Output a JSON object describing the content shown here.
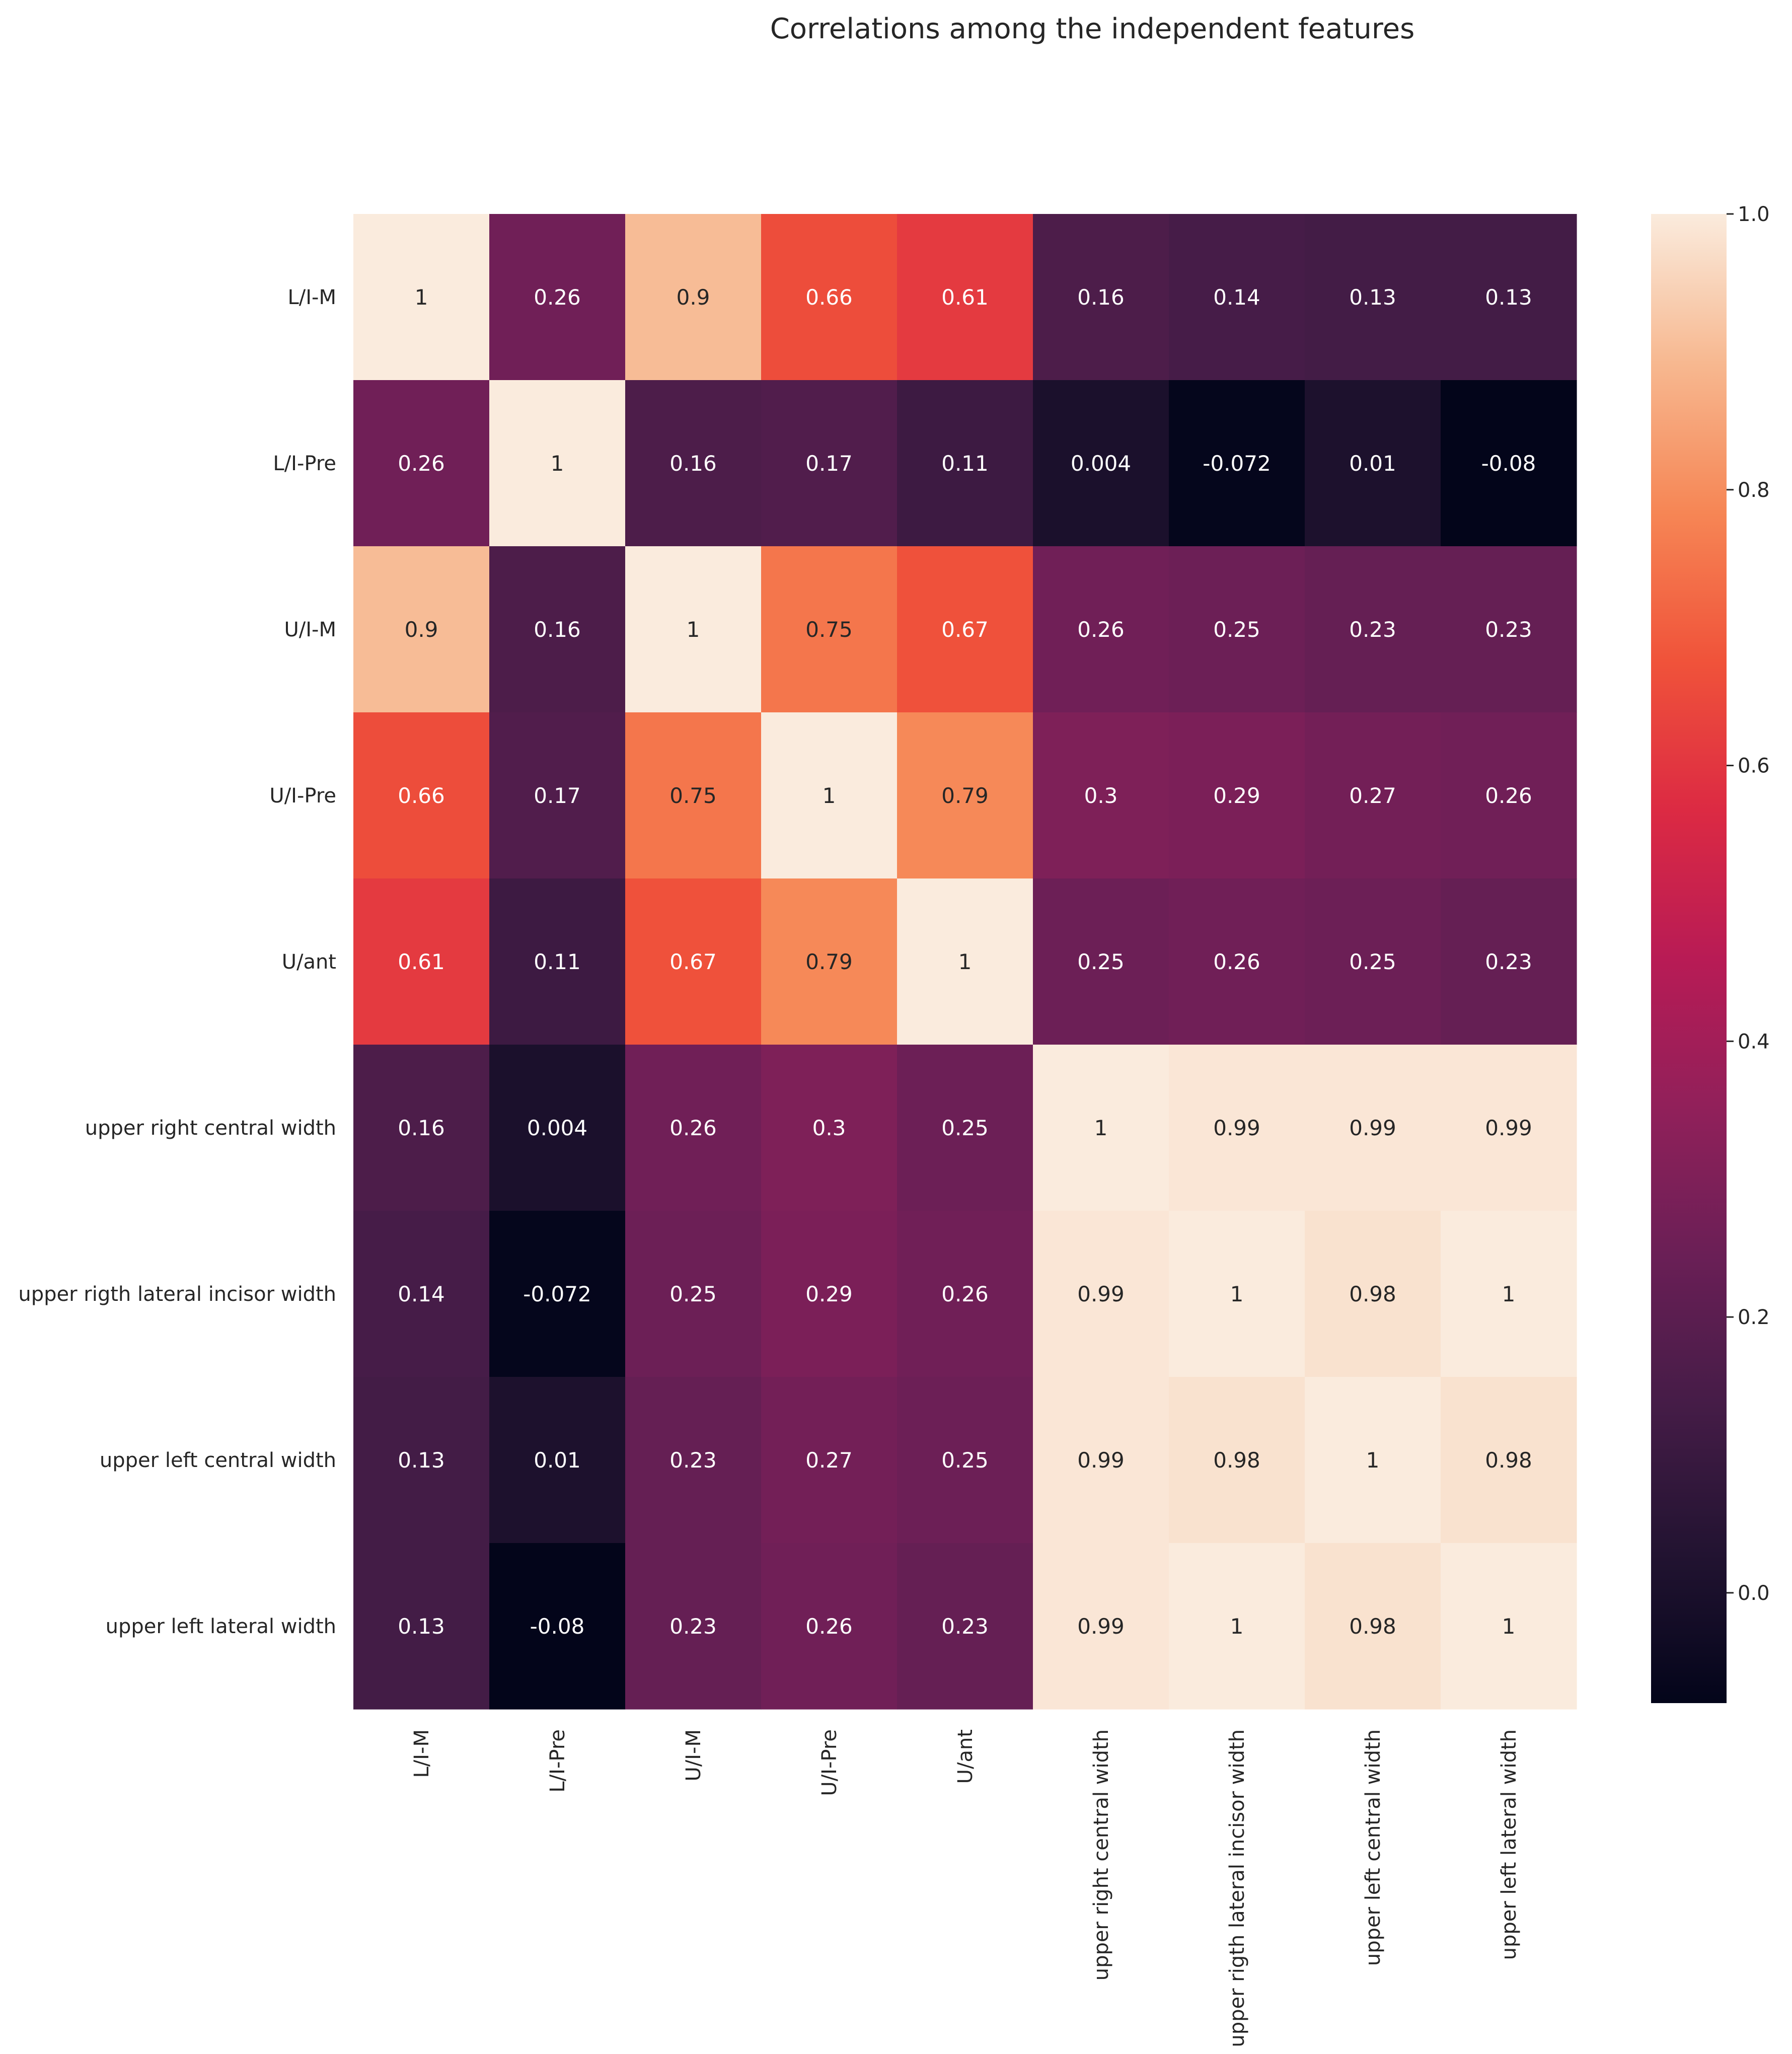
{
  "chart_data": {
    "type": "heatmap",
    "title": "Correlations among the independent features",
    "rows": [
      "L/I-M",
      "L/I-Pre",
      "U/I-M",
      "U/I-Pre",
      "U/ant",
      "upper right central width",
      "upper rigth lateral incisor width",
      "upper left central width",
      "upper left lateral width"
    ],
    "columns": [
      "L/I-M",
      "L/I-Pre",
      "U/I-M",
      "U/I-Pre",
      "U/ant",
      "upper right central width",
      "upper rigth lateral incisor width",
      "upper left central width",
      "upper left lateral width"
    ],
    "values": [
      [
        1,
        0.26,
        0.9,
        0.66,
        0.61,
        0.16,
        0.14,
        0.13,
        0.13
      ],
      [
        0.26,
        1,
        0.16,
        0.17,
        0.11,
        0.004,
        -0.072,
        0.01,
        -0.08
      ],
      [
        0.9,
        0.16,
        1,
        0.75,
        0.67,
        0.26,
        0.25,
        0.23,
        0.23
      ],
      [
        0.66,
        0.17,
        0.75,
        1,
        0.79,
        0.3,
        0.29,
        0.27,
        0.26
      ],
      [
        0.61,
        0.11,
        0.67,
        0.79,
        1,
        0.25,
        0.26,
        0.25,
        0.23
      ],
      [
        0.16,
        0.004,
        0.26,
        0.3,
        0.25,
        1,
        0.99,
        0.99,
        0.99
      ],
      [
        0.14,
        -0.072,
        0.25,
        0.29,
        0.26,
        0.99,
        1,
        0.98,
        1
      ],
      [
        0.13,
        0.01,
        0.23,
        0.27,
        0.25,
        0.99,
        0.98,
        1,
        0.98
      ],
      [
        0.13,
        -0.08,
        0.23,
        0.26,
        0.23,
        0.99,
        1,
        0.98,
        1
      ]
    ],
    "value_labels": [
      [
        "1",
        "0.26",
        "0.9",
        "0.66",
        "0.61",
        "0.16",
        "0.14",
        "0.13",
        "0.13"
      ],
      [
        "0.26",
        "1",
        "0.16",
        "0.17",
        "0.11",
        "0.004",
        "-0.072",
        "0.01",
        "-0.08"
      ],
      [
        "0.9",
        "0.16",
        "1",
        "0.75",
        "0.67",
        "0.26",
        "0.25",
        "0.23",
        "0.23"
      ],
      [
        "0.66",
        "0.17",
        "0.75",
        "1",
        "0.79",
        "0.3",
        "0.29",
        "0.27",
        "0.26"
      ],
      [
        "0.61",
        "0.11",
        "0.67",
        "0.79",
        "1",
        "0.25",
        "0.26",
        "0.25",
        "0.23"
      ],
      [
        "0.16",
        "0.004",
        "0.26",
        "0.3",
        "0.25",
        "1",
        "0.99",
        "0.99",
        "0.99"
      ],
      [
        "0.14",
        "-0.072",
        "0.25",
        "0.29",
        "0.26",
        "0.99",
        "1",
        "0.98",
        "1"
      ],
      [
        "0.13",
        "0.01",
        "0.23",
        "0.27",
        "0.25",
        "0.99",
        "0.98",
        "1",
        "0.98"
      ],
      [
        "0.13",
        "-0.08",
        "0.23",
        "0.26",
        "0.23",
        "0.99",
        "1",
        "0.98",
        "1"
      ]
    ],
    "colorbar": {
      "min": -0.08,
      "max": 1.0,
      "ticks": [
        {
          "value": 1.0,
          "label": "1.0"
        },
        {
          "value": 0.8,
          "label": "0.8"
        },
        {
          "value": 0.6,
          "label": "0.6"
        },
        {
          "value": 0.4,
          "label": "0.4"
        },
        {
          "value": 0.2,
          "label": "0.2"
        },
        {
          "value": 0.0,
          "label": "0.0"
        }
      ]
    },
    "colormap": "rocket",
    "grid": false,
    "legend": "colorbar-right"
  }
}
